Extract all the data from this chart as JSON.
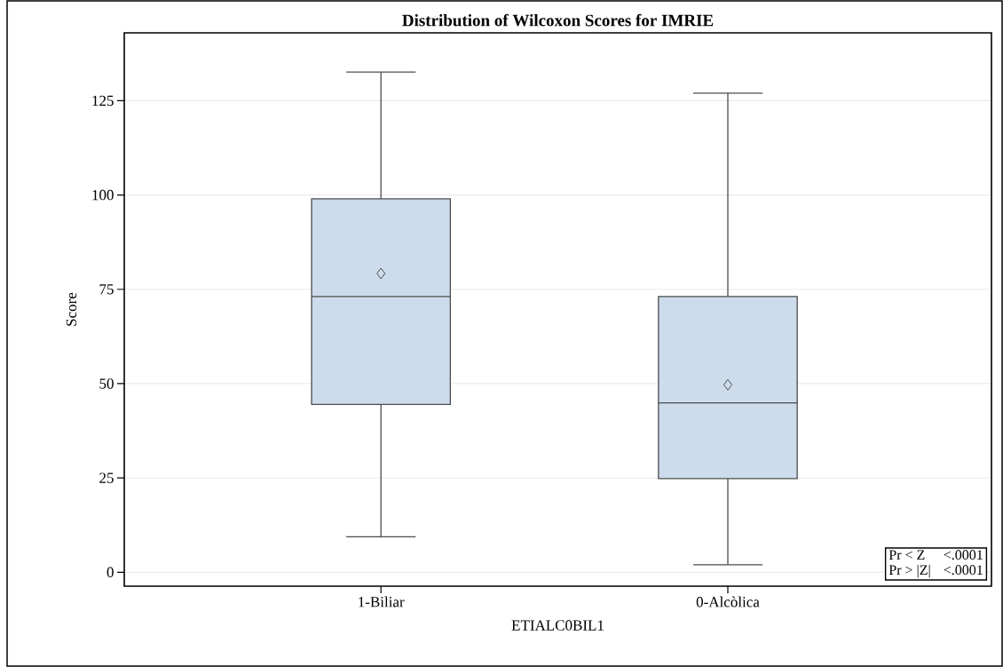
{
  "chart_data": {
    "type": "box",
    "title": "Distribution of Wilcoxon Scores for IMRIE",
    "xlabel": "ETIALC0BIL1",
    "ylabel": "Score",
    "categories": [
      "1-Biliar",
      "0-Alcòlica"
    ],
    "series": [
      {
        "color": "#cddcec",
        "boxes": [
          {
            "low": 9.4,
            "q1": 44.5,
            "median": 73.1,
            "q3": 99.0,
            "high": 132.6,
            "mean": 79.2
          },
          {
            "low": 2,
            "q1": 24.8,
            "median": 44.9,
            "q3": 73.1,
            "high": 127.0,
            "mean": 49.7
          }
        ]
      }
    ],
    "ylim": [
      -3.7,
      143
    ],
    "yticks": [
      0,
      25,
      50,
      75,
      100,
      125
    ],
    "grid": "y",
    "annotations": [
      "Pr < Z",
      "<.0001",
      "Pr > |Z|",
      "<.0001"
    ]
  }
}
